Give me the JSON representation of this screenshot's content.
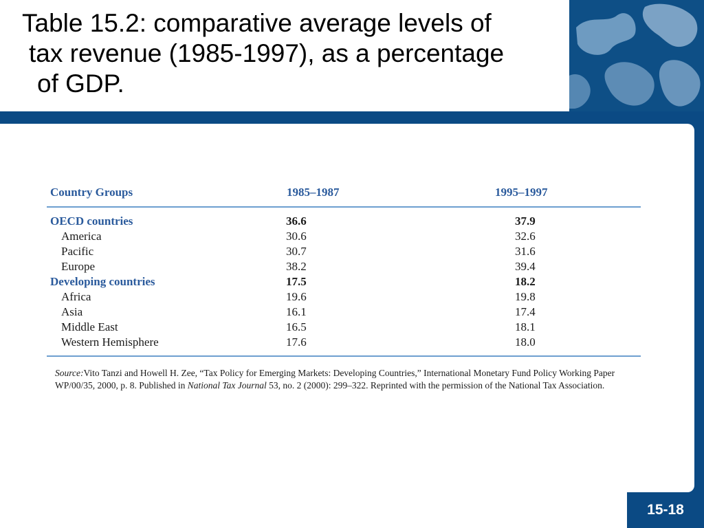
{
  "slide": {
    "title_lines": [
      "Table 15.2: comparative average levels of",
      "tax revenue (1985-1997), as a percentage",
      "of GDP."
    ],
    "page_number": "15-18"
  },
  "table": {
    "headers": [
      "Country Groups",
      "1985–1987",
      "1995–1997"
    ],
    "rows": [
      {
        "name": "OECD countries",
        "v1985_1987": "36.6",
        "v1995_1997": "37.9",
        "group": true
      },
      {
        "name": "America",
        "v1985_1987": "30.6",
        "v1995_1997": "32.6",
        "group": false
      },
      {
        "name": "Pacific",
        "v1985_1987": "30.7",
        "v1995_1997": "31.6",
        "group": false
      },
      {
        "name": "Europe",
        "v1985_1987": "38.2",
        "v1995_1997": "39.4",
        "group": false
      },
      {
        "name": "Developing countries",
        "v1985_1987": "17.5",
        "v1995_1997": "18.2",
        "group": true
      },
      {
        "name": "Africa",
        "v1985_1987": "19.6",
        "v1995_1997": "19.8",
        "group": false
      },
      {
        "name": "Asia",
        "v1985_1987": "16.1",
        "v1995_1997": "17.4",
        "group": false
      },
      {
        "name": "Middle East",
        "v1985_1987": "16.5",
        "v1995_1997": "18.1",
        "group": false
      },
      {
        "name": "Western Hemisphere",
        "v1985_1987": "17.6",
        "v1995_1997": "18.0",
        "group": false
      }
    ]
  },
  "source": {
    "label": "Source:",
    "text_before_journal": "Vito Tanzi and Howell H. Zee, “Tax Policy for Emerging Markets: Developing Countries,” International Monetary Fund Policy Working Paper WP/00/35, 2000, p. 8. Published in ",
    "journal": "National Tax Journal",
    "text_after_journal": " 53, no. 2 (2000): 299–322. Reprinted with the permission of the National Tax Association."
  },
  "colors": {
    "brand_blue": "#0b4a84",
    "header_blue": "#2a5a9c",
    "rule_blue": "#6d9fd0"
  },
  "decoration": {
    "corner_image": "world-map-icon"
  }
}
